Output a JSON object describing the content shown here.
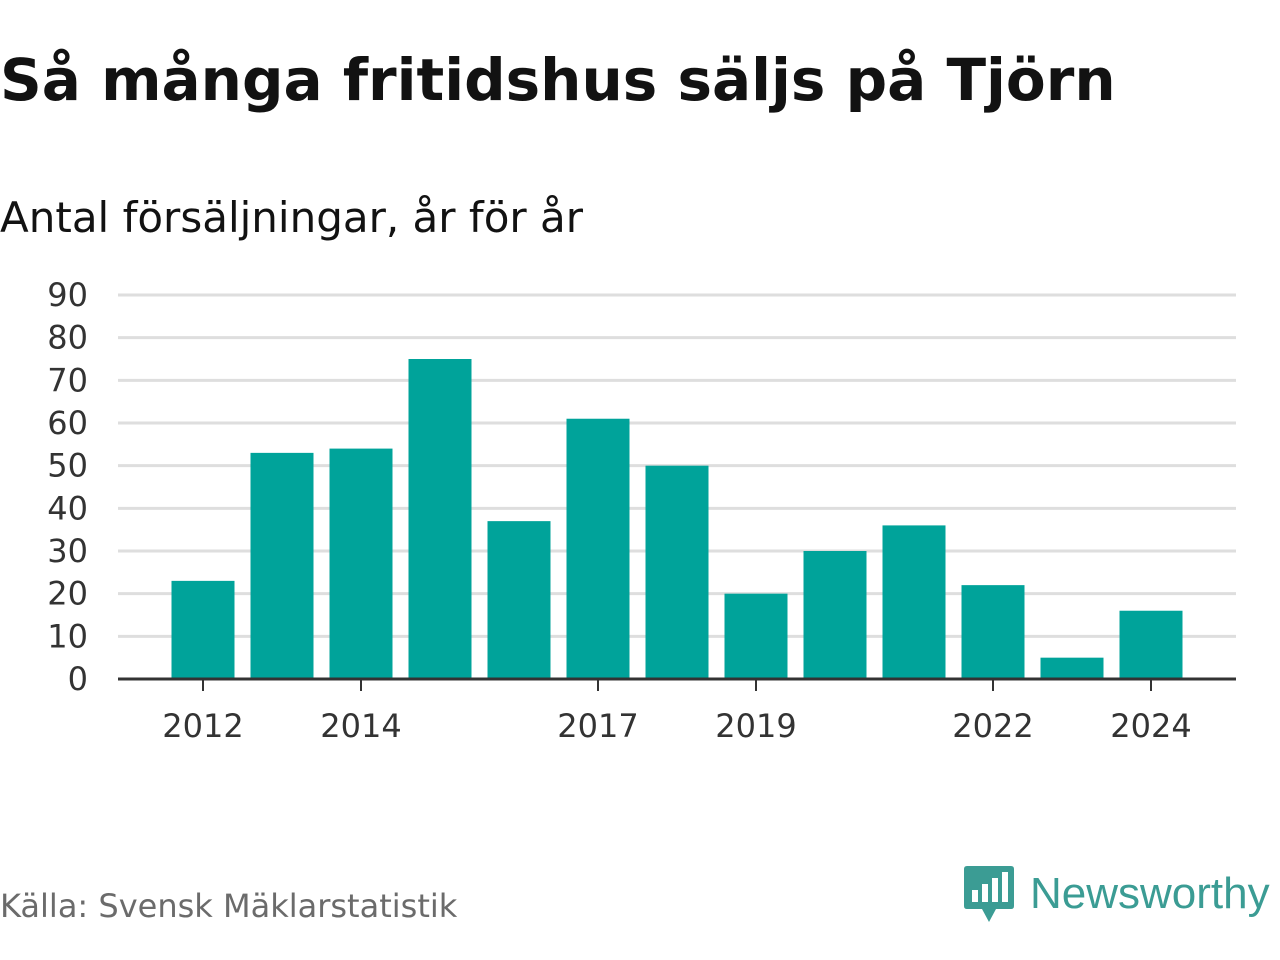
{
  "chart_data": {
    "type": "bar",
    "title": "Så många fritidshus säljs på Tjörn",
    "subtitle": "Antal försäljningar, år för år",
    "categories": [
      "2012",
      "2013",
      "2014",
      "2015",
      "2016",
      "2017",
      "2018",
      "2019",
      "2020",
      "2021",
      "2022",
      "2023",
      "2024"
    ],
    "values": [
      23,
      53,
      54,
      75,
      37,
      61,
      50,
      20,
      30,
      36,
      22,
      5,
      16
    ],
    "x_tick_labels": [
      "2012",
      "2014",
      "2017",
      "2019",
      "2022",
      "2024"
    ],
    "y_ticks": [
      0,
      10,
      20,
      30,
      40,
      50,
      60,
      70,
      80,
      90
    ],
    "ylim": [
      0,
      90
    ],
    "grid": true,
    "bar_color": "#00a39a"
  },
  "footer": {
    "source": "Källa: Svensk Mäklarstatistik",
    "brand": "Newsworthy",
    "brand_color": "#3b9c94"
  }
}
